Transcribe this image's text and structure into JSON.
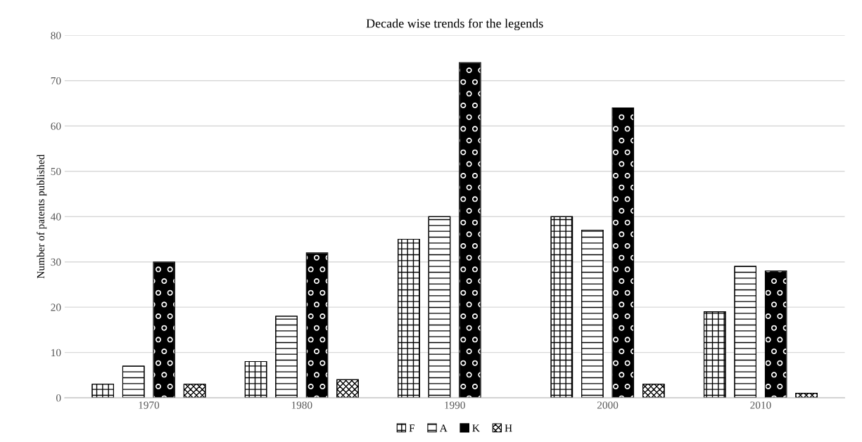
{
  "chart_data": {
    "type": "bar",
    "title": "Decade wise trends for the legends",
    "ylabel": "Number of patents published",
    "categories": [
      "1970",
      "1980",
      "1990",
      "2000",
      "2010"
    ],
    "series": [
      {
        "name": "F",
        "color": "#000000",
        "values": [
          3,
          8,
          35,
          40,
          19
        ]
      },
      {
        "name": "A",
        "color": "#000000",
        "values": [
          7,
          18,
          40,
          37,
          29
        ]
      },
      {
        "name": "K",
        "color": "#000000",
        "values": [
          30,
          32,
          74,
          64,
          28
        ]
      },
      {
        "name": "H",
        "color": "#000000",
        "values": [
          3,
          4,
          null,
          3,
          1
        ]
      }
    ],
    "ylim": [
      0,
      80
    ],
    "yticks": [
      0,
      10,
      20,
      30,
      40,
      50,
      60,
      70,
      80
    ],
    "grid": "y",
    "legend": "bottom"
  }
}
